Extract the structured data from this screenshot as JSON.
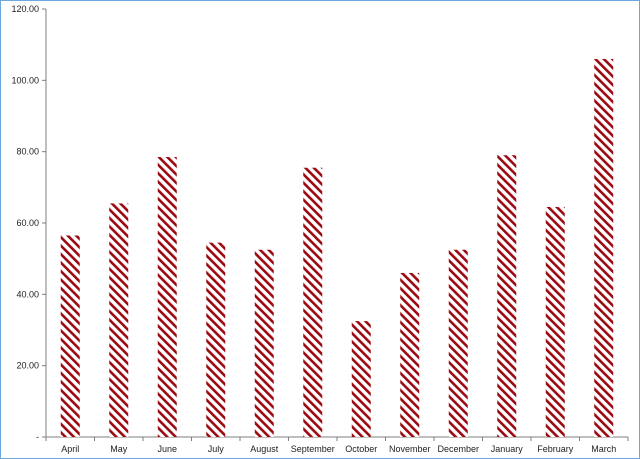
{
  "chart_data": {
    "type": "bar",
    "title": "",
    "xlabel": "",
    "ylabel": "",
    "categories": [
      "April",
      "May",
      "June",
      "July",
      "August",
      "September",
      "October",
      "November",
      "December",
      "January",
      "February",
      "March"
    ],
    "values": [
      56.5,
      65.5,
      78.5,
      54.5,
      52.5,
      75.5,
      32.5,
      46.0,
      52.5,
      79.0,
      64.5,
      106.0
    ],
    "ylim": [
      0,
      120
    ],
    "yticks": [
      0,
      20,
      40,
      60,
      80,
      100,
      120
    ],
    "ytick_labels": [
      "-",
      "20.00",
      "40.00",
      "60.00",
      "80.00",
      "100.00",
      "120.00"
    ],
    "grid": false,
    "legend": "none",
    "bar_pattern": "diagonal-hatch",
    "bar_color": "#9b0a12",
    "border_color": "#6fa8dc"
  }
}
